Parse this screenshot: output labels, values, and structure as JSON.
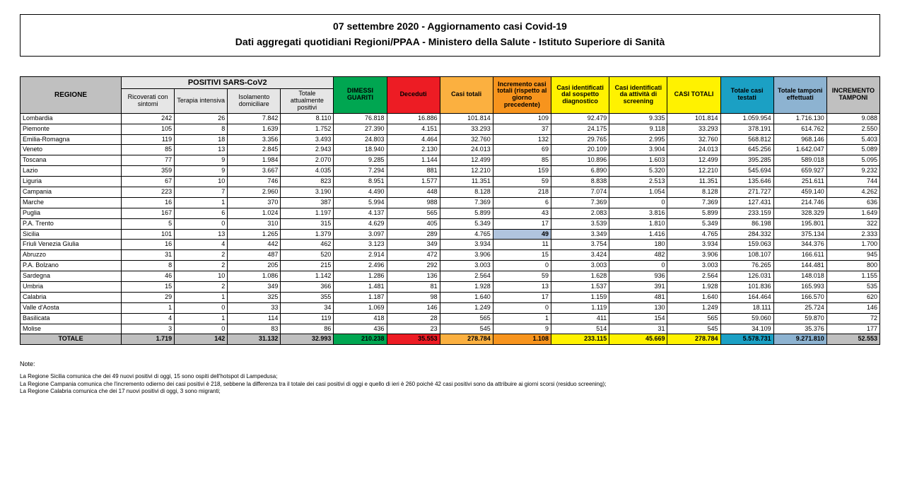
{
  "title": {
    "line1": "07 settembre 2020 - Aggiornamento casi Covid-19",
    "line2": "Dati aggregati quotidiani Regioni/PPAA - Ministero della Salute - Istituto Superiore di Sanità"
  },
  "colors": {
    "header_gray": "#c0c0c0",
    "light_gray": "#e6e6e6",
    "green": "#00a651",
    "red": "#ed1c24",
    "orange_light": "#fbb040",
    "orange_mid": "#f7941d",
    "yellow": "#fff200",
    "teal": "#1ba0c4",
    "blue_pale": "#8db3d1",
    "row_gray": "#bfbfbf",
    "highlight_blue": "#b0c4de"
  },
  "layout": {
    "col_widths_pct": [
      12,
      6.3,
      6.3,
      6.3,
      6.3,
      6.3,
      6.3,
      6.3,
      6.9,
      6.9,
      6.9,
      6.3,
      6.3,
      6.3,
      6.3
    ]
  },
  "headers": {
    "regione": "REGIONE",
    "positivi_group": "POSITIVI SARS-CoV2",
    "ricoverati": "Ricoverati con sintomi",
    "terapia": "Terapia intensiva",
    "isolamento": "Isolamento domiciliare",
    "totale_pos": "Totale attualmente positivi",
    "dimessi": "DIMESSI GUARITI",
    "deceduti": "Deceduti",
    "casi_totali": "Casi totali",
    "incremento_casi": "Incremento casi totali (rispetto al giorno precedente)",
    "sospetto": "Casi identificati dal sospetto diagnostico",
    "screening": "Casi identificati da attività di screening",
    "casi_totali2": "CASI TOTALI",
    "casi_testati": "Totale casi testati",
    "tamponi": "Totale tamponi effettuati",
    "inc_tamponi": "INCREMENTO TAMPONI"
  },
  "rows": [
    {
      "region": "Lombardia",
      "v": [
        "242",
        "26",
        "7.842",
        "8.110",
        "76.818",
        "16.886",
        "101.814",
        "109",
        "92.479",
        "9.335",
        "101.814",
        "1.059.954",
        "1.716.130",
        "9.088"
      ]
    },
    {
      "region": "Piemonte",
      "v": [
        "105",
        "8",
        "1.639",
        "1.752",
        "27.390",
        "4.151",
        "33.293",
        "37",
        "24.175",
        "9.118",
        "33.293",
        "378.191",
        "614.762",
        "2.550"
      ]
    },
    {
      "region": "Emilia-Romagna",
      "v": [
        "119",
        "18",
        "3.356",
        "3.493",
        "24.803",
        "4.464",
        "32.760",
        "132",
        "29.765",
        "2.995",
        "32.760",
        "568.812",
        "968.146",
        "5.403"
      ]
    },
    {
      "region": "Veneto",
      "v": [
        "85",
        "13",
        "2.845",
        "2.943",
        "18.940",
        "2.130",
        "24.013",
        "69",
        "20.109",
        "3.904",
        "24.013",
        "645.256",
        "1.642.047",
        "5.089"
      ]
    },
    {
      "region": "Toscana",
      "v": [
        "77",
        "9",
        "1.984",
        "2.070",
        "9.285",
        "1.144",
        "12.499",
        "85",
        "10.896",
        "1.603",
        "12.499",
        "395.285",
        "589.018",
        "5.095"
      ]
    },
    {
      "region": "Lazio",
      "v": [
        "359",
        "9",
        "3.667",
        "4.035",
        "7.294",
        "881",
        "12.210",
        "159",
        "6.890",
        "5.320",
        "12.210",
        "545.694",
        "659.927",
        "9.232"
      ]
    },
    {
      "region": "Liguria",
      "v": [
        "67",
        "10",
        "746",
        "823",
        "8.951",
        "1.577",
        "11.351",
        "59",
        "8.838",
        "2.513",
        "11.351",
        "135.646",
        "251.611",
        "744"
      ]
    },
    {
      "region": "Campania",
      "v": [
        "223",
        "7",
        "2.960",
        "3.190",
        "4.490",
        "448",
        "8.128",
        "218",
        "7.074",
        "1.054",
        "8.128",
        "271.727",
        "459.140",
        "4.262"
      ]
    },
    {
      "region": "Marche",
      "v": [
        "16",
        "1",
        "370",
        "387",
        "5.994",
        "988",
        "7.369",
        "6",
        "7.369",
        "0",
        "7.369",
        "127.431",
        "214.746",
        "636"
      ]
    },
    {
      "region": "Puglia",
      "v": [
        "167",
        "6",
        "1.024",
        "1.197",
        "4.137",
        "565",
        "5.899",
        "43",
        "2.083",
        "3.816",
        "5.899",
        "233.159",
        "328.329",
        "1.649"
      ]
    },
    {
      "region": "P.A. Trento",
      "v": [
        "5",
        "0",
        "310",
        "315",
        "4.629",
        "405",
        "5.349",
        "17",
        "3.539",
        "1.810",
        "5.349",
        "86.198",
        "195.801",
        "322"
      ]
    },
    {
      "region": "Sicilia",
      "v": [
        "101",
        "13",
        "1.265",
        "1.379",
        "3.097",
        "289",
        "4.765",
        "49",
        "3.349",
        "1.416",
        "4.765",
        "284.332",
        "375.134",
        "2.333"
      ],
      "hl": 7
    },
    {
      "region": "Friuli Venezia Giulia",
      "v": [
        "16",
        "4",
        "442",
        "462",
        "3.123",
        "349",
        "3.934",
        "11",
        "3.754",
        "180",
        "3.934",
        "159.063",
        "344.376",
        "1.700"
      ]
    },
    {
      "region": "Abruzzo",
      "v": [
        "31",
        "2",
        "487",
        "520",
        "2.914",
        "472",
        "3.906",
        "15",
        "3.424",
        "482",
        "3.906",
        "108.107",
        "166.611",
        "945"
      ]
    },
    {
      "region": "P.A. Bolzano",
      "v": [
        "8",
        "2",
        "205",
        "215",
        "2.496",
        "292",
        "3.003",
        "0",
        "3.003",
        "0",
        "3.003",
        "76.265",
        "144.481",
        "800"
      ]
    },
    {
      "region": "Sardegna",
      "v": [
        "46",
        "10",
        "1.086",
        "1.142",
        "1.286",
        "136",
        "2.564",
        "59",
        "1.628",
        "936",
        "2.564",
        "126.031",
        "148.018",
        "1.155"
      ]
    },
    {
      "region": "Umbria",
      "v": [
        "15",
        "2",
        "349",
        "366",
        "1.481",
        "81",
        "1.928",
        "13",
        "1.537",
        "391",
        "1.928",
        "101.836",
        "165.993",
        "535"
      ]
    },
    {
      "region": "Calabria",
      "v": [
        "29",
        "1",
        "325",
        "355",
        "1.187",
        "98",
        "1.640",
        "17",
        "1.159",
        "481",
        "1.640",
        "164.464",
        "166.570",
        "620"
      ]
    },
    {
      "region": "Valle d'Aosta",
      "v": [
        "1",
        "0",
        "33",
        "34",
        "1.069",
        "146",
        "1.249",
        "0",
        "1.119",
        "130",
        "1.249",
        "18.111",
        "25.724",
        "146"
      ]
    },
    {
      "region": "Basilicata",
      "v": [
        "4",
        "1",
        "114",
        "119",
        "418",
        "28",
        "565",
        "1",
        "411",
        "154",
        "565",
        "59.060",
        "59.870",
        "72"
      ]
    },
    {
      "region": "Molise",
      "v": [
        "3",
        "0",
        "83",
        "86",
        "436",
        "23",
        "545",
        "9",
        "514",
        "31",
        "545",
        "34.109",
        "35.376",
        "177"
      ]
    }
  ],
  "total": {
    "label": "TOTALE",
    "v": [
      "1.719",
      "142",
      "31.132",
      "32.993",
      "210.238",
      "35.553",
      "278.784",
      "1.108",
      "233.115",
      "45.669",
      "278.784",
      "5.578.731",
      "9.271.810",
      "52.553"
    ]
  },
  "total_colors": [
    "row_gray",
    "row_gray",
    "row_gray",
    "row_gray",
    "green",
    "red",
    "orange_light",
    "orange_mid",
    "yellow",
    "yellow",
    "yellow",
    "teal",
    "blue_pale",
    "row_gray"
  ],
  "notes": {
    "title": "Note:",
    "lines": [
      "La Regione Sicilia comunica che dei 49 nuovi positivi di oggi, 15 sono ospiti dell'hotspot di Lampedusa;",
      "La Regione Campania comunica che l'incremento odierno dei casi positivi è 218, sebbene la differenza tra il totale dei casi positivi di oggi e quello di ieri è 260 poiché 42 casi positivi sono da attribuire ai giorni scorsi (residuo screening);",
      "La Regione Calabria comunica che dei 17 nuovi positivi di oggi, 3 sono migranti;"
    ]
  }
}
